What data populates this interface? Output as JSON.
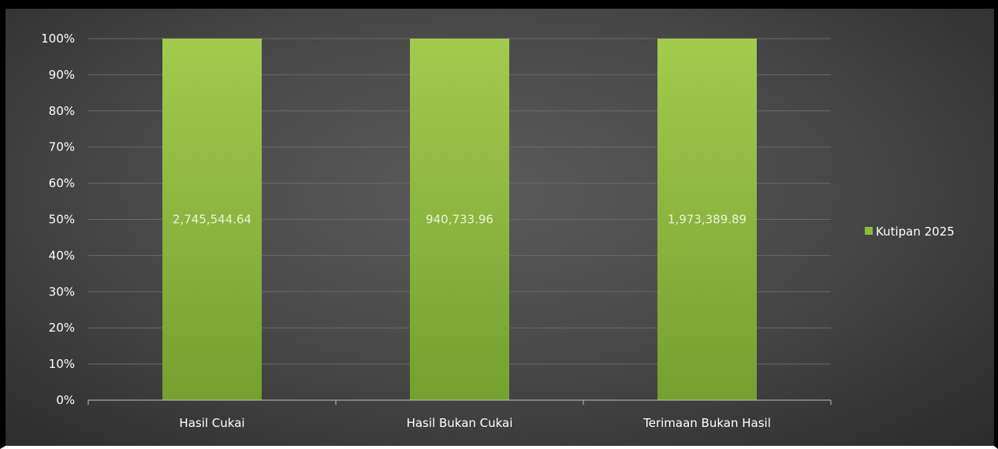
{
  "chart_data": {
    "type": "bar",
    "stacked_percent": true,
    "categories": [
      "Hasil Cukai",
      "Hasil Bukan Cukai",
      "Terimaan Bukan Hasil"
    ],
    "series": [
      {
        "name": "Kutipan 2025",
        "values": [
          100,
          100,
          100
        ],
        "data_labels": [
          "2,745,544.64",
          "940,733.96",
          "1,973,389.89"
        ],
        "color": "#8bbd3c"
      }
    ],
    "y_ticks": [
      "0%",
      "10%",
      "20%",
      "30%",
      "40%",
      "50%",
      "60%",
      "70%",
      "80%",
      "90%",
      "100%"
    ],
    "ylim": [
      0,
      100
    ],
    "grid": true,
    "legend": "right",
    "colors": {
      "bar_top": "#a2cb4e",
      "bar_bottom": "#74a030",
      "grid": "#6a6a6a",
      "axis": "#bfbfbf"
    }
  }
}
